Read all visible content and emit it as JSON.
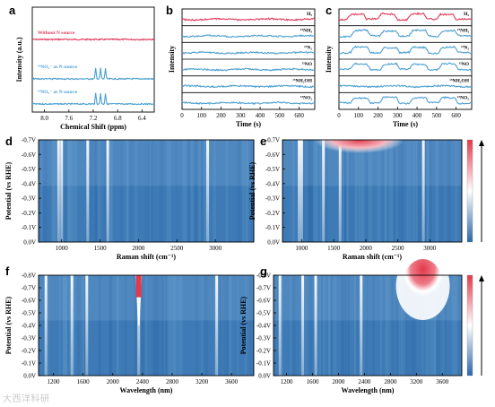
{
  "panels": {
    "a": "a",
    "b": "b",
    "c": "c",
    "d": "d",
    "e": "e",
    "f": "f",
    "g": "g"
  },
  "watermark": "大西洋科研",
  "chart_data": [
    {
      "panel": "a",
      "type": "line",
      "xlabel": "Chemical Shift (ppm)",
      "ylabel": "Intensity (a.u.)",
      "xlim": [
        8.2,
        6.2
      ],
      "x_ticks": [
        "8.0",
        "7.6",
        "7.2",
        "6.8",
        "6.4"
      ],
      "traces": [
        {
          "label": "Without N source",
          "color": "#e0395a"
        },
        {
          "label": "¹⁵NO₃⁻ as N source",
          "color": "#4a9fd0",
          "peaks_ppm": [
            7.16,
            7.08,
            7.0
          ]
        },
        {
          "label": "¹⁴NO₃⁻ as N source",
          "color": "#4a9fd0",
          "peaks_ppm": [
            7.16,
            7.08,
            7.0
          ]
        }
      ]
    },
    {
      "panel": "b",
      "type": "line",
      "xlabel": "Time (s)",
      "ylabel": "Intensity",
      "xlim": [
        0,
        680
      ],
      "x_ticks": [
        "0",
        "100",
        "200",
        "300",
        "400",
        "500",
        "600"
      ],
      "traces": [
        {
          "label": "H₂",
          "color": "#e0395a"
        },
        {
          "label": "¹⁵NH₃",
          "color": "#4a9fd0"
        },
        {
          "label": "¹⁵N₂",
          "color": "#4a9fd0"
        },
        {
          "label": "¹⁵NO",
          "color": "#4a9fd0"
        },
        {
          "label": "¹⁵NH₂OH",
          "color": "#4a9fd0"
        },
        {
          "label": "¹⁵NO₂",
          "color": "#4a9fd0"
        }
      ]
    },
    {
      "panel": "c",
      "type": "line",
      "xlabel": "Time (s)",
      "ylabel": "Intensity",
      "xlim": [
        0,
        680
      ],
      "x_ticks": [
        "0",
        "100",
        "200",
        "300",
        "400",
        "500",
        "600"
      ],
      "traces": [
        {
          "label": "H₂",
          "color": "#e0395a",
          "pulse_starts_s": [
            40,
            200,
            350,
            500
          ]
        },
        {
          "label": "¹⁵NH₃",
          "color": "#4a9fd0",
          "pulse_starts_s": [
            60,
            210,
            360,
            510
          ]
        },
        {
          "label": "¹⁵N₂",
          "color": "#4a9fd0",
          "pulse_starts_s": [
            60,
            210,
            360,
            510
          ]
        },
        {
          "label": "¹⁵NO",
          "color": "#4a9fd0",
          "pulse_starts_s": [
            60,
            210,
            360,
            510
          ]
        },
        {
          "label": "¹⁵NH₂OH",
          "color": "#4a9fd0"
        },
        {
          "label": "¹⁵NO₂",
          "color": "#4a9fd0",
          "pulse_starts_s": [
            60,
            210,
            360,
            510
          ]
        }
      ]
    },
    {
      "panel": "d",
      "type": "heatmap",
      "xlabel": "Raman shift (cm⁻¹)",
      "ylabel": "Potential (vs RHE)",
      "xlim": [
        700,
        3500
      ],
      "ylim": [
        0.0,
        -0.7
      ],
      "x_ticks": [
        "1000",
        "1500",
        "2000",
        "2500",
        "3000"
      ],
      "y_ticks": [
        "-0.7V",
        "-0.6V",
        "-0.5V",
        "-0.4V",
        "-0.3V",
        "-0.2V",
        "-0.1V",
        "0.0V"
      ],
      "bright_bands_cm1": [
        960,
        1000,
        1340,
        1600,
        2900
      ]
    },
    {
      "panel": "e",
      "type": "heatmap",
      "xlabel": "Raman shift (cm⁻¹)",
      "ylabel": "Potential (vs RHE)",
      "xlim": [
        700,
        3500
      ],
      "ylim": [
        0.0,
        -0.7
      ],
      "x_ticks": [
        "1000",
        "1500",
        "2000",
        "2500",
        "3000"
      ],
      "y_ticks": [
        "-0.7V",
        "-0.6V",
        "-0.5V",
        "-0.4V",
        "-0.3V",
        "-0.2V",
        "-0.1V",
        "0.0V"
      ],
      "bright_bands_cm1": [
        960,
        1000,
        1340,
        1600,
        2900
      ],
      "hot_region": {
        "x_cm1": [
          1200,
          2600
        ],
        "potential_V": [
          -0.6,
          -0.7
        ]
      }
    },
    {
      "panel": "f",
      "type": "heatmap",
      "xlabel": "Wavelength (nm)",
      "ylabel": "Potential (vs RHE)",
      "xlim": [
        1000,
        3900
      ],
      "ylim": [
        0.0,
        -0.8
      ],
      "x_ticks": [
        "1200",
        "1600",
        "2000",
        "2400",
        "2800",
        "3200",
        "3600"
      ],
      "y_ticks": [
        "-0.8V",
        "-0.7V",
        "-0.6V",
        "-0.5V",
        "-0.4V",
        "-0.3V",
        "-0.2V",
        "-0.1V",
        "0.0V"
      ],
      "bright_bands_nm": [
        1100,
        1450,
        1650,
        2350,
        3400
      ],
      "hot_spot": {
        "x_nm": 2350,
        "potential_V": [
          -0.7,
          -0.8
        ]
      }
    },
    {
      "panel": "g",
      "type": "heatmap",
      "xlabel": "Wavelength (nm)",
      "ylabel": "Potential (vs RHE)",
      "xlim": [
        1000,
        3900
      ],
      "ylim": [
        0.0,
        -0.8
      ],
      "x_ticks": [
        "1200",
        "1600",
        "2000",
        "2400",
        "2800",
        "3200",
        "3600"
      ],
      "y_ticks": [
        "-0.8V",
        "-0.7V",
        "-0.6V",
        "-0.5V",
        "-0.4V",
        "-0.3V",
        "-0.2V",
        "-0.1V",
        "0.0V"
      ],
      "bright_bands_nm": [
        1100,
        1450,
        1650,
        2350
      ],
      "hot_spot": {
        "x_nm": 3300,
        "potential_V": [
          -0.5,
          -0.8
        ]
      }
    }
  ],
  "colors": {
    "red": "#e0395a",
    "blue": "#4a9fd0",
    "heat_low": "#2b67a7",
    "heat_mid": "#ffffff",
    "heat_high": "#e3394b"
  }
}
